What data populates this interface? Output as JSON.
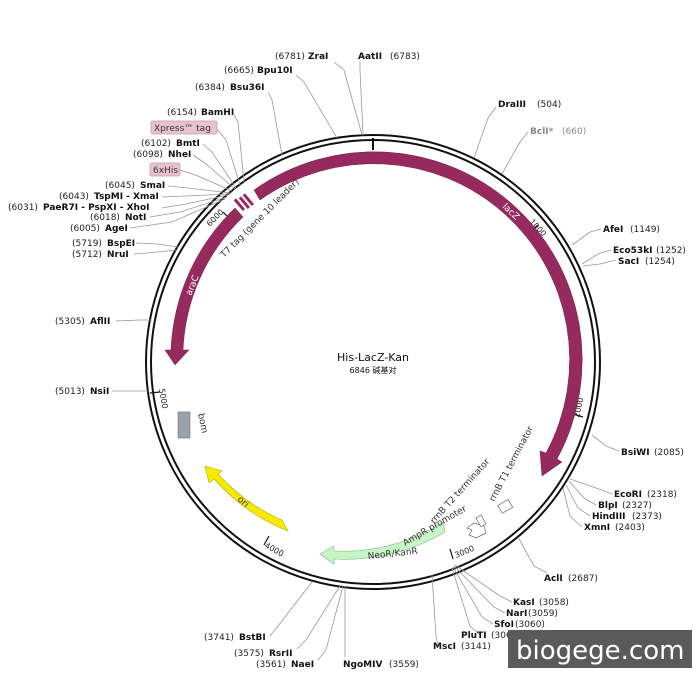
{
  "plasmid": {
    "name": "His-LacZ-Kan",
    "size_text": "6846 碱基对",
    "total_bp": 6846
  },
  "colors": {
    "backbone": "#111111",
    "lacZ": "#962a5e",
    "araC": "#962a5e",
    "ori": "#f5ea00",
    "neo": "#c8f5c8",
    "bom": "#9aa1a8",
    "tag": "#e8c3cf"
  },
  "ticks": [
    {
      "bp": 1000,
      "label": "1000"
    },
    {
      "bp": 2000,
      "label": "2000"
    },
    {
      "bp": 3000,
      "label": "3000"
    },
    {
      "bp": 4000,
      "label": "4000"
    },
    {
      "bp": 5000,
      "label": "5000"
    },
    {
      "bp": 6000,
      "label": "6000"
    }
  ],
  "features": [
    {
      "key": "lacZ",
      "label": "lacZ",
      "start": 6190,
      "end": 2380,
      "dir": "cw",
      "icon": "arrow-cw"
    },
    {
      "key": "araC",
      "label": "araC",
      "start": 5940,
      "end": 5130,
      "dir": "ccw",
      "icon": "arrow-ccw"
    },
    {
      "key": "ori",
      "label": "ori",
      "start": 3950,
      "end": 4640,
      "dir": "ccw",
      "icon": "arrow-ccw"
    },
    {
      "key": "neo",
      "label": "NeoR/KanR",
      "start": 3140,
      "end": 3690,
      "dir": "ccw",
      "icon": "arrow-ccw"
    },
    {
      "key": "bom",
      "label": "bom",
      "icon": "box"
    },
    {
      "key": "rrnb_t1",
      "label": "rrnB T1 terminator",
      "icon": "box"
    },
    {
      "key": "rrnb_t2",
      "label": "rrnB T2 terminator",
      "icon": "box"
    },
    {
      "key": "ampr_promoter",
      "label": "AmpR promoter",
      "icon": "arrow-ccw"
    },
    {
      "key": "t7_tag",
      "label": "T7 tag (gene 10 leader)",
      "icon": "box"
    }
  ],
  "tags": [
    {
      "label": "Xpress™ tag"
    },
    {
      "label": "6xHis"
    }
  ],
  "sites": [
    {
      "name": "ZraI",
      "pos": "(6781)",
      "bp": 6781
    },
    {
      "name": "AatII",
      "pos": "(6783)",
      "bp": 6783
    },
    {
      "name": "Bpu10I",
      "pos": "(6665)",
      "bp": 6665
    },
    {
      "name": "Bsu36I",
      "pos": "(6384)",
      "bp": 6384
    },
    {
      "name": "BamHI",
      "pos": "(6154)",
      "bp": 6154
    },
    {
      "name": "BmtI",
      "pos": "(6102)",
      "bp": 6102
    },
    {
      "name": "NheI",
      "pos": "(6098)",
      "bp": 6098
    },
    {
      "name": "SmaI",
      "pos": "(6045)",
      "bp": 6045
    },
    {
      "name": "TspMI - XmaI",
      "pos": "(6043)",
      "bp": 6043
    },
    {
      "name": "PaeR7I - PspXI - XhoI",
      "pos": "(6031)",
      "bp": 6031
    },
    {
      "name": "NotI",
      "pos": "(6018)",
      "bp": 6018
    },
    {
      "name": "AgeI",
      "pos": "(6005)",
      "bp": 6005
    },
    {
      "name": "BspEI",
      "pos": "(5719)",
      "bp": 5719
    },
    {
      "name": "NruI",
      "pos": "(5712)",
      "bp": 5712
    },
    {
      "name": "AflII",
      "pos": "(5305)",
      "bp": 5305
    },
    {
      "name": "NsiI",
      "pos": "(5013)",
      "bp": 5013
    },
    {
      "name": "DraIII",
      "pos": "(504)",
      "bp": 504
    },
    {
      "name": "BclI*",
      "pos": "(660)",
      "bp": 660,
      "grey": true
    },
    {
      "name": "AfeI",
      "pos": "(1149)",
      "bp": 1149
    },
    {
      "name": "Eco53kI",
      "pos": "(1252)",
      "bp": 1252
    },
    {
      "name": "SacI",
      "pos": "(1254)",
      "bp": 1254
    },
    {
      "name": "BsiWI",
      "pos": "(2085)",
      "bp": 2085
    },
    {
      "name": "EcoRI",
      "pos": "(2318)",
      "bp": 2318
    },
    {
      "name": "BlpI",
      "pos": "(2327)",
      "bp": 2327
    },
    {
      "name": "HindIII",
      "pos": "(2373)",
      "bp": 2373
    },
    {
      "name": "XmnI",
      "pos": "(2403)",
      "bp": 2403
    },
    {
      "name": "AclI",
      "pos": "(2687)",
      "bp": 2687
    },
    {
      "name": "KasI",
      "pos": "(3058)",
      "bp": 3058
    },
    {
      "name": "NarI",
      "pos": "(3059)",
      "bp": 3059
    },
    {
      "name": "SfoI",
      "pos": "(3060)",
      "bp": 3060
    },
    {
      "name": "PluTI",
      "pos": "(3062)",
      "bp": 3062
    },
    {
      "name": "MscI",
      "pos": "(3141)",
      "bp": 3141
    },
    {
      "name": "NgoMIV",
      "pos": "(3559)",
      "bp": 3559
    },
    {
      "name": "NaeI",
      "pos": "(3561)",
      "bp": 3561
    },
    {
      "name": "RsrII",
      "pos": "(3575)",
      "bp": 3575
    },
    {
      "name": "BstBI",
      "pos": "(3741)",
      "bp": 3741
    }
  ],
  "watermark": "biogege.com"
}
